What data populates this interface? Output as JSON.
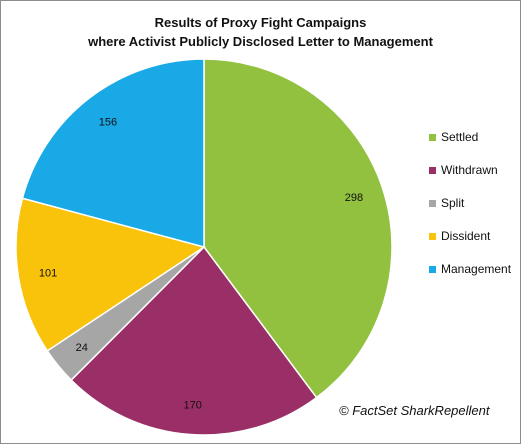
{
  "chart_data": {
    "type": "pie",
    "title_lines": [
      "Results of Proxy Fight Campaigns",
      "where Activist Publicly Disclosed Letter to Management"
    ],
    "slices": [
      {
        "label": "Settled",
        "value": 298,
        "color": "#92c13f"
      },
      {
        "label": "Withdrawn",
        "value": 170,
        "color": "#9a2f67"
      },
      {
        "label": "Split",
        "value": 24,
        "color": "#a6a6a6"
      },
      {
        "label": "Dissident",
        "value": 101,
        "color": "#f9c20b"
      },
      {
        "label": "Management",
        "value": 156,
        "color": "#18a9e6"
      }
    ],
    "legend_position": "right",
    "source": "© FactSet SharkRepellent"
  }
}
